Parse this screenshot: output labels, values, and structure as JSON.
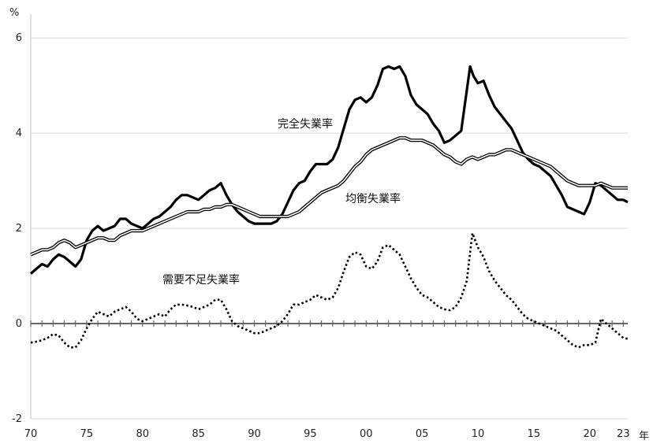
{
  "chart_data": {
    "type": "line",
    "y_unit_label": "%",
    "x_unit_label": "年",
    "ylim": [
      -2,
      6.5
    ],
    "xlim": [
      1970,
      2023.4
    ],
    "y_ticks": [
      -2,
      0,
      2,
      4,
      6
    ],
    "x_ticks": [
      {
        "value": 1970,
        "label": "70"
      },
      {
        "value": 1975,
        "label": "75"
      },
      {
        "value": 1980,
        "label": "80"
      },
      {
        "value": 1985,
        "label": "85"
      },
      {
        "value": 1990,
        "label": "90"
      },
      {
        "value": 1995,
        "label": "95"
      },
      {
        "value": 2000,
        "label": "00"
      },
      {
        "value": 2005,
        "label": "05"
      },
      {
        "value": 2010,
        "label": "10"
      },
      {
        "value": 2015,
        "label": "15"
      },
      {
        "value": 2020,
        "label": "20"
      },
      {
        "value": 2023,
        "label": "23"
      }
    ],
    "grid": "horizontal",
    "legend": "none (inline labels)",
    "series": [
      {
        "name": "完全失業率",
        "style": "thick-solid",
        "color": "#000000",
        "x": [
          1970.0,
          1970.5,
          1971.0,
          1971.5,
          1972.0,
          1972.5,
          1973.0,
          1973.5,
          1974.0,
          1974.5,
          1975.0,
          1975.5,
          1976.0,
          1976.5,
          1977.0,
          1977.5,
          1978.0,
          1978.5,
          1979.0,
          1979.5,
          1980.0,
          1980.5,
          1981.0,
          1981.5,
          1982.0,
          1982.5,
          1983.0,
          1983.5,
          1984.0,
          1984.5,
          1985.0,
          1985.5,
          1986.0,
          1986.5,
          1987.0,
          1987.5,
          1988.0,
          1988.5,
          1989.0,
          1989.5,
          1990.0,
          1990.5,
          1991.0,
          1991.5,
          1992.0,
          1992.5,
          1993.0,
          1993.5,
          1994.0,
          1994.5,
          1995.0,
          1995.5,
          1996.0,
          1996.5,
          1997.0,
          1997.5,
          1998.0,
          1998.5,
          1999.0,
          1999.5,
          2000.0,
          2000.5,
          2001.0,
          2001.5,
          2002.0,
          2002.5,
          2003.0,
          2003.5,
          2004.0,
          2004.5,
          2005.0,
          2005.5,
          2006.0,
          2006.5,
          2007.0,
          2007.5,
          2008.0,
          2008.5,
          2009.0,
          2009.3,
          2009.6,
          2010.0,
          2010.5,
          2011.0,
          2011.5,
          2012.0,
          2012.5,
          2013.0,
          2013.5,
          2014.0,
          2014.5,
          2015.0,
          2015.5,
          2016.0,
          2016.5,
          2017.0,
          2017.5,
          2018.0,
          2018.5,
          2019.0,
          2019.5,
          2020.0,
          2020.5,
          2021.0,
          2021.5,
          2022.0,
          2022.5,
          2023.0,
          2023.4
        ],
        "values": [
          1.05,
          1.15,
          1.25,
          1.2,
          1.35,
          1.45,
          1.4,
          1.3,
          1.2,
          1.35,
          1.75,
          1.95,
          2.05,
          1.95,
          2.0,
          2.05,
          2.2,
          2.2,
          2.1,
          2.05,
          2.0,
          2.1,
          2.2,
          2.25,
          2.35,
          2.45,
          2.6,
          2.7,
          2.7,
          2.65,
          2.6,
          2.7,
          2.8,
          2.85,
          2.95,
          2.7,
          2.5,
          2.35,
          2.25,
          2.15,
          2.1,
          2.1,
          2.1,
          2.1,
          2.15,
          2.3,
          2.55,
          2.8,
          2.95,
          3.0,
          3.2,
          3.35,
          3.35,
          3.35,
          3.45,
          3.7,
          4.1,
          4.5,
          4.7,
          4.75,
          4.65,
          4.75,
          5.0,
          5.35,
          5.4,
          5.35,
          5.4,
          5.2,
          4.8,
          4.6,
          4.5,
          4.4,
          4.2,
          4.05,
          3.8,
          3.85,
          3.95,
          4.05,
          4.9,
          5.4,
          5.2,
          5.05,
          5.1,
          4.8,
          4.55,
          4.4,
          4.25,
          4.1,
          3.85,
          3.6,
          3.45,
          3.35,
          3.3,
          3.2,
          3.1,
          2.9,
          2.7,
          2.45,
          2.4,
          2.35,
          2.3,
          2.55,
          2.95,
          2.9,
          2.8,
          2.7,
          2.6,
          2.6,
          2.55
        ]
      },
      {
        "name": "均衡失業率",
        "style": "double-line",
        "color": "#000000",
        "x": [
          1970.0,
          1970.5,
          1971.0,
          1971.5,
          1972.0,
          1972.5,
          1973.0,
          1973.5,
          1974.0,
          1974.5,
          1975.0,
          1975.5,
          1976.0,
          1976.5,
          1977.0,
          1977.5,
          1978.0,
          1978.5,
          1979.0,
          1979.5,
          1980.0,
          1980.5,
          1981.0,
          1981.5,
          1982.0,
          1982.5,
          1983.0,
          1983.5,
          1984.0,
          1984.5,
          1985.0,
          1985.5,
          1986.0,
          1986.5,
          1987.0,
          1987.5,
          1988.0,
          1988.5,
          1989.0,
          1989.5,
          1990.0,
          1990.5,
          1991.0,
          1991.5,
          1992.0,
          1992.5,
          1993.0,
          1993.5,
          1994.0,
          1994.5,
          1995.0,
          1995.5,
          1996.0,
          1996.5,
          1997.0,
          1997.5,
          1998.0,
          1998.5,
          1999.0,
          1999.5,
          2000.0,
          2000.5,
          2001.0,
          2001.5,
          2002.0,
          2002.5,
          2003.0,
          2003.5,
          2004.0,
          2004.5,
          2005.0,
          2005.5,
          2006.0,
          2006.5,
          2007.0,
          2007.5,
          2008.0,
          2008.5,
          2009.0,
          2009.5,
          2010.0,
          2010.5,
          2011.0,
          2011.5,
          2012.0,
          2012.5,
          2013.0,
          2013.5,
          2014.0,
          2014.5,
          2015.0,
          2015.5,
          2016.0,
          2016.5,
          2017.0,
          2017.5,
          2018.0,
          2018.5,
          2019.0,
          2019.5,
          2020.0,
          2020.5,
          2021.0,
          2021.5,
          2022.0,
          2022.5,
          2023.0,
          2023.4
        ],
        "values": [
          1.45,
          1.5,
          1.55,
          1.55,
          1.6,
          1.7,
          1.75,
          1.7,
          1.6,
          1.65,
          1.7,
          1.75,
          1.8,
          1.8,
          1.75,
          1.75,
          1.85,
          1.9,
          1.95,
          1.95,
          1.95,
          2.0,
          2.05,
          2.1,
          2.15,
          2.2,
          2.25,
          2.3,
          2.35,
          2.35,
          2.35,
          2.4,
          2.4,
          2.45,
          2.45,
          2.5,
          2.5,
          2.45,
          2.4,
          2.35,
          2.3,
          2.25,
          2.25,
          2.25,
          2.25,
          2.25,
          2.25,
          2.3,
          2.35,
          2.45,
          2.55,
          2.65,
          2.75,
          2.8,
          2.85,
          2.9,
          3.0,
          3.15,
          3.3,
          3.4,
          3.55,
          3.65,
          3.7,
          3.75,
          3.8,
          3.85,
          3.9,
          3.9,
          3.85,
          3.85,
          3.85,
          3.8,
          3.75,
          3.65,
          3.55,
          3.5,
          3.4,
          3.35,
          3.45,
          3.5,
          3.45,
          3.5,
          3.55,
          3.55,
          3.6,
          3.65,
          3.65,
          3.6,
          3.55,
          3.5,
          3.45,
          3.4,
          3.35,
          3.3,
          3.2,
          3.1,
          3.0,
          2.95,
          2.9,
          2.9,
          2.9,
          2.9,
          2.95,
          2.9,
          2.85,
          2.85,
          2.85,
          2.85
        ]
      },
      {
        "name": "需要不足失業率",
        "style": "dotted",
        "color": "#000000",
        "x": [
          1970.0,
          1970.5,
          1971.0,
          1971.5,
          1972.0,
          1972.5,
          1973.0,
          1973.5,
          1974.0,
          1974.5,
          1975.0,
          1975.5,
          1976.0,
          1976.5,
          1977.0,
          1977.5,
          1978.0,
          1978.5,
          1979.0,
          1979.5,
          1980.0,
          1980.5,
          1981.0,
          1981.5,
          1982.0,
          1982.5,
          1983.0,
          1983.5,
          1984.0,
          1984.5,
          1985.0,
          1985.5,
          1986.0,
          1986.5,
          1987.0,
          1987.5,
          1988.0,
          1988.5,
          1989.0,
          1989.5,
          1990.0,
          1990.5,
          1991.0,
          1991.5,
          1992.0,
          1992.5,
          1993.0,
          1993.5,
          1994.0,
          1994.5,
          1995.0,
          1995.5,
          1996.0,
          1996.5,
          1997.0,
          1997.5,
          1998.0,
          1998.5,
          1999.0,
          1999.5,
          2000.0,
          2000.5,
          2001.0,
          2001.5,
          2002.0,
          2002.5,
          2003.0,
          2003.5,
          2004.0,
          2004.5,
          2005.0,
          2005.5,
          2006.0,
          2006.5,
          2007.0,
          2007.5,
          2008.0,
          2008.5,
          2009.0,
          2009.5,
          2010.0,
          2010.5,
          2011.0,
          2011.5,
          2012.0,
          2012.5,
          2013.0,
          2013.5,
          2014.0,
          2014.5,
          2015.0,
          2015.5,
          2016.0,
          2016.5,
          2017.0,
          2017.5,
          2018.0,
          2018.5,
          2019.0,
          2019.5,
          2020.0,
          2020.5,
          2021.0,
          2021.5,
          2022.0,
          2022.5,
          2023.0,
          2023.4
        ],
        "values": [
          -0.4,
          -0.38,
          -0.35,
          -0.3,
          -0.22,
          -0.25,
          -0.4,
          -0.5,
          -0.5,
          -0.35,
          -0.1,
          0.1,
          0.25,
          0.2,
          0.15,
          0.25,
          0.3,
          0.35,
          0.25,
          0.1,
          0.05,
          0.1,
          0.15,
          0.2,
          0.15,
          0.3,
          0.4,
          0.4,
          0.38,
          0.35,
          0.3,
          0.35,
          0.4,
          0.5,
          0.5,
          0.3,
          0.05,
          -0.05,
          -0.1,
          -0.15,
          -0.2,
          -0.2,
          -0.15,
          -0.1,
          -0.05,
          0.05,
          0.2,
          0.4,
          0.4,
          0.45,
          0.5,
          0.6,
          0.55,
          0.5,
          0.55,
          0.75,
          1.1,
          1.4,
          1.5,
          1.45,
          1.2,
          1.15,
          1.3,
          1.6,
          1.65,
          1.55,
          1.45,
          1.2,
          0.95,
          0.75,
          0.6,
          0.55,
          0.45,
          0.35,
          0.3,
          0.28,
          0.35,
          0.55,
          0.9,
          1.9,
          1.6,
          1.4,
          1.1,
          0.9,
          0.75,
          0.6,
          0.5,
          0.35,
          0.2,
          0.1,
          0.05,
          0.0,
          -0.05,
          -0.1,
          -0.15,
          -0.25,
          -0.35,
          -0.45,
          -0.5,
          -0.45,
          -0.45,
          -0.4,
          0.1,
          0.0,
          -0.1,
          -0.2,
          -0.3,
          -0.32
        ]
      }
    ],
    "annotations": [
      {
        "text": "完全失業率",
        "series": "完全失業率"
      },
      {
        "text": "均衡失業率",
        "series": "均衡失業率"
      },
      {
        "text": "需要不足失業率",
        "series": "需要不足失業率"
      }
    ]
  }
}
